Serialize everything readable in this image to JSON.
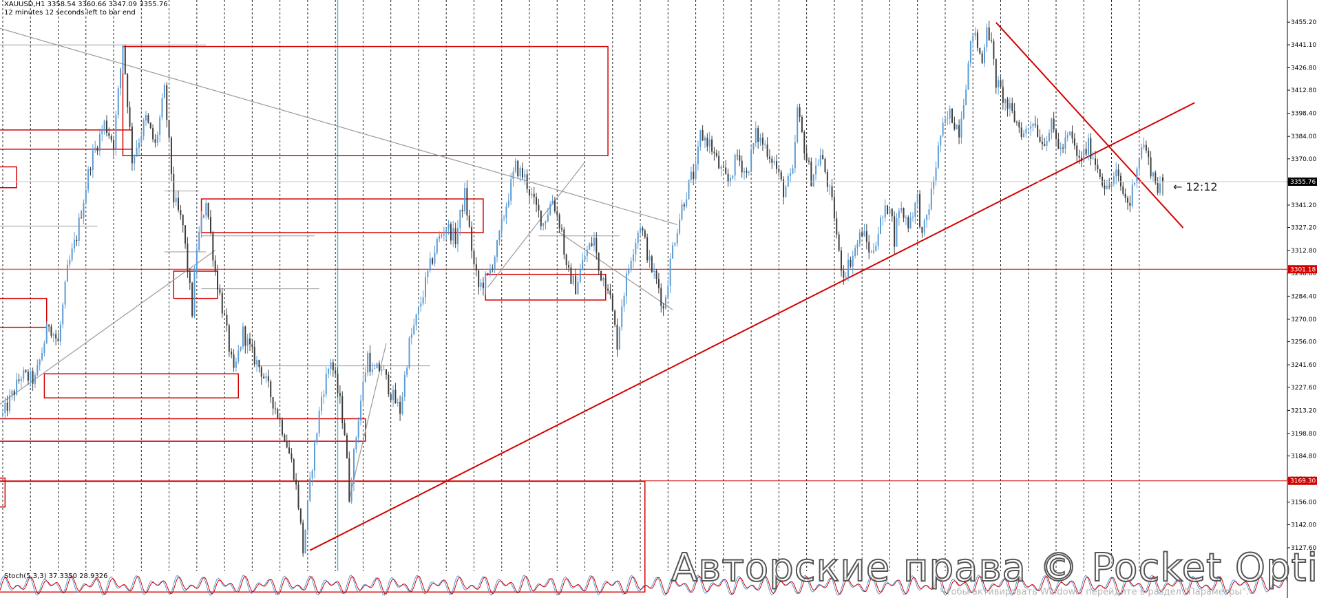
{
  "header": {
    "symbol_line": "XAUUSD,H1  3358.54 3360.66 3347.09 3355.76",
    "timer_line": "12 minutes 12 seconds left to bar end"
  },
  "timer_label": "← 12:12",
  "stochastic_label": "Stoch(5,3,3) 37.3350 28.9326",
  "watermark": "Авторские права © Pocket Option",
  "activation_notice": "Чтобы активировать Windows, перейдите в раздел \"Параметры\".",
  "colors": {
    "bull": "#5b9bd5",
    "bear": "#3c3c3c",
    "red": "#d40000",
    "gray": "#9a9a9a",
    "cyan": "#5fb8c8"
  },
  "chart_data": {
    "type": "candlestick",
    "symbol": "XAUUSD",
    "timeframe": "H1",
    "ohlc_current": {
      "open": 3358.54,
      "high": 3360.66,
      "low": 3347.09,
      "close": 3355.76
    },
    "ylim": [
      3113.0,
      3469.0
    ],
    "y_ticks": [
      3455.2,
      3441.1,
      3426.8,
      3412.8,
      3398.4,
      3384.0,
      3370.0,
      3355.6,
      3341.2,
      3327.2,
      3312.8,
      3298.8,
      3284.4,
      3270.0,
      3256.0,
      3241.6,
      3227.6,
      3213.2,
      3198.8,
      3184.8,
      3170.4,
      3156.0,
      3142.0,
      3127.6
    ],
    "price_labels": [
      {
        "value": 3355.76,
        "text": "3355.76",
        "style": "current"
      },
      {
        "value": 3301.18,
        "text": "3301.18",
        "style": "red"
      },
      {
        "value": 3169.3,
        "text": "3169.30",
        "style": "red"
      }
    ],
    "horizontal_lines": [
      3301.18,
      3169.3
    ],
    "price_path": [
      [
        0,
        3210
      ],
      [
        8,
        3235
      ],
      [
        14,
        3232
      ],
      [
        20,
        3268
      ],
      [
        24,
        3255
      ],
      [
        28,
        3300
      ],
      [
        32,
        3322
      ],
      [
        38,
        3368
      ],
      [
        44,
        3392
      ],
      [
        48,
        3380
      ],
      [
        52,
        3442
      ],
      [
        56,
        3370
      ],
      [
        62,
        3395
      ],
      [
        66,
        3378
      ],
      [
        70,
        3412
      ],
      [
        74,
        3345
      ],
      [
        78,
        3328
      ],
      [
        82,
        3275
      ],
      [
        84,
        3315
      ],
      [
        88,
        3345
      ],
      [
        92,
        3300
      ],
      [
        96,
        3270
      ],
      [
        100,
        3235
      ],
      [
        104,
        3262
      ],
      [
        108,
        3248
      ],
      [
        112,
        3238
      ],
      [
        118,
        3215
      ],
      [
        122,
        3198
      ],
      [
        126,
        3175
      ],
      [
        128,
        3155
      ],
      [
        130,
        3126
      ],
      [
        134,
        3180
      ],
      [
        138,
        3222
      ],
      [
        142,
        3245
      ],
      [
        146,
        3218
      ],
      [
        148,
        3200
      ],
      [
        150,
        3160
      ],
      [
        154,
        3210
      ],
      [
        158,
        3248
      ],
      [
        160,
        3236
      ],
      [
        164,
        3240
      ],
      [
        168,
        3224
      ],
      [
        172,
        3213
      ],
      [
        176,
        3255
      ],
      [
        180,
        3275
      ],
      [
        184,
        3298
      ],
      [
        188,
        3318
      ],
      [
        192,
        3328
      ],
      [
        196,
        3320
      ],
      [
        200,
        3348
      ],
      [
        204,
        3303
      ],
      [
        206,
        3290
      ],
      [
        210,
        3296
      ],
      [
        214,
        3315
      ],
      [
        218,
        3342
      ],
      [
        222,
        3365
      ],
      [
        226,
        3358
      ],
      [
        230,
        3342
      ],
      [
        234,
        3330
      ],
      [
        238,
        3345
      ],
      [
        242,
        3325
      ],
      [
        244,
        3300
      ],
      [
        246,
        3296
      ],
      [
        248,
        3290
      ],
      [
        252,
        3310
      ],
      [
        256,
        3320
      ],
      [
        258,
        3300
      ],
      [
        262,
        3292
      ],
      [
        266,
        3255
      ],
      [
        268,
        3280
      ],
      [
        272,
        3310
      ],
      [
        276,
        3330
      ],
      [
        280,
        3305
      ],
      [
        284,
        3290
      ],
      [
        286,
        3276
      ],
      [
        290,
        3315
      ],
      [
        294,
        3340
      ],
      [
        298,
        3358
      ],
      [
        300,
        3362
      ],
      [
        302,
        3385
      ],
      [
        306,
        3380
      ],
      [
        310,
        3365
      ],
      [
        314,
        3355
      ],
      [
        318,
        3372
      ],
      [
        322,
        3360
      ],
      [
        326,
        3385
      ],
      [
        330,
        3378
      ],
      [
        334,
        3368
      ],
      [
        338,
        3350
      ],
      [
        342,
        3360
      ],
      [
        344,
        3400
      ],
      [
        348,
        3370
      ],
      [
        350,
        3358
      ],
      [
        354,
        3372
      ],
      [
        356,
        3362
      ],
      [
        360,
        3335
      ],
      [
        362,
        3310
      ],
      [
        364,
        3298
      ],
      [
        368,
        3310
      ],
      [
        372,
        3325
      ],
      [
        376,
        3310
      ],
      [
        380,
        3330
      ],
      [
        384,
        3343
      ],
      [
        386,
        3320
      ],
      [
        388,
        3340
      ],
      [
        392,
        3330
      ],
      [
        396,
        3345
      ],
      [
        398,
        3320
      ],
      [
        402,
        3348
      ],
      [
        406,
        3385
      ],
      [
        410,
        3398
      ],
      [
        414,
        3388
      ],
      [
        418,
        3428
      ],
      [
        420,
        3450
      ],
      [
        424,
        3430
      ],
      [
        426,
        3455
      ],
      [
        428,
        3440
      ],
      [
        430,
        3418
      ],
      [
        434,
        3405
      ],
      [
        438,
        3395
      ],
      [
        442,
        3385
      ],
      [
        446,
        3395
      ],
      [
        450,
        3380
      ],
      [
        454,
        3390
      ],
      [
        458,
        3375
      ],
      [
        462,
        3385
      ],
      [
        466,
        3368
      ],
      [
        470,
        3378
      ],
      [
        474,
        3365
      ],
      [
        478,
        3350
      ],
      [
        482,
        3360
      ],
      [
        486,
        3345
      ],
      [
        488,
        3342
      ],
      [
        490,
        3360
      ],
      [
        492,
        3372
      ],
      [
        494,
        3380
      ],
      [
        496,
        3368
      ],
      [
        498,
        3360
      ],
      [
        500,
        3352
      ],
      [
        502,
        3356
      ]
    ],
    "bar_count": 502,
    "dashed_vertical_period": 12,
    "cyan_vertical_bar": 145
  }
}
